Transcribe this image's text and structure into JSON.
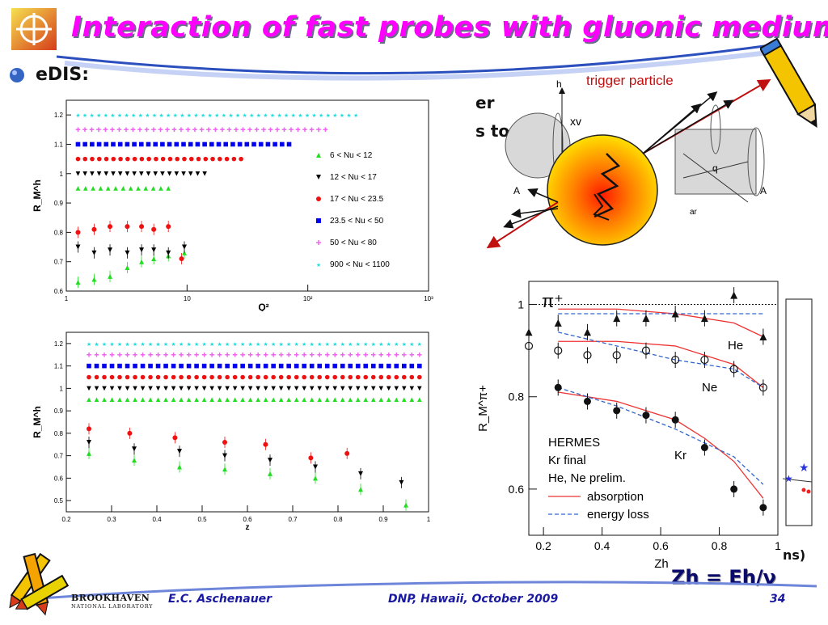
{
  "slide": {
    "title": "Interaction of fast probes with gluonic medium",
    "bullet_partial": "eDIS:",
    "partial_text_1": "er",
    "partial_text_2": "s to,",
    "right_partial": "ns)",
    "formula": "Zh = Eh/ν",
    "footer_author": "E.C. Aschenauer",
    "footer_conference": "DNP, Hawaii, October 2009",
    "footer_page": "34",
    "logo_text": "BROOKHAVEN",
    "logo_subtext": "NATIONAL LABORATORY"
  },
  "colors": {
    "title": "#ff00ff",
    "footer": "#1a1aa0",
    "series": [
      "#22dd22",
      "#000000",
      "#ee1111",
      "#0000ee",
      "#ee66ee",
      "#22dddd"
    ]
  },
  "chart_data": [
    {
      "type": "scatter",
      "xlabel": "Q²",
      "ylabel": "R_M^h",
      "xscale": "log",
      "xlim": [
        1,
        1000
      ],
      "ylim": [
        0.6,
        1.25
      ],
      "xticks": [
        "1",
        "10",
        "10²",
        "10³"
      ],
      "yticks": [
        "0.6",
        "0.7",
        "0.8",
        "0.9",
        "1",
        "1.1",
        "1.2"
      ],
      "legend": [
        "6 < Nu < 12",
        "12 < Nu < 17",
        "17 < Nu < 23.5",
        "23.5 < Nu < 50",
        "50 < Nu < 80",
        "900 < Nu < 1100"
      ],
      "legend_position": "right",
      "series": [
        {
          "name": "6 < Nu < 12",
          "marker": "triangle-up",
          "x": [
            1.25,
            1.7,
            2.3,
            3.2,
            4.2,
            5.3,
            7.0,
            9.5
          ],
          "y": [
            0.63,
            0.64,
            0.65,
            0.68,
            0.7,
            0.71,
            0.72,
            0.73
          ],
          "band": {
            "x": [
              1.25,
              7.0
            ],
            "y": 0.95
          }
        },
        {
          "name": "12 < Nu < 17",
          "marker": "triangle-down",
          "x": [
            1.25,
            1.7,
            2.3,
            3.2,
            4.2,
            5.3,
            7.0,
            9.5
          ],
          "y": [
            0.75,
            0.73,
            0.74,
            0.73,
            0.74,
            0.74,
            0.73,
            0.75
          ],
          "band": {
            "x": [
              1.25,
              14.0
            ],
            "y": 1.0
          }
        },
        {
          "name": "17 < Nu < 23.5",
          "marker": "circle",
          "x": [
            1.25,
            1.7,
            2.3,
            3.2,
            4.2,
            5.3,
            7.0,
            9.0
          ],
          "y": [
            0.8,
            0.81,
            0.82,
            0.82,
            0.82,
            0.81,
            0.82,
            0.71
          ],
          "band": {
            "x": [
              1.25,
              28.0
            ],
            "y": 1.05
          }
        },
        {
          "name": "23.5 < Nu < 50",
          "marker": "square",
          "x": [],
          "y": [],
          "band": {
            "x": [
              1.25,
              70.0
            ],
            "y": 1.1
          }
        },
        {
          "name": "50 < Nu < 80",
          "marker": "open-cross",
          "x": [],
          "y": [],
          "band": {
            "x": [
              1.25,
              140.0
            ],
            "y": 1.15
          }
        },
        {
          "name": "900 < Nu < 1100",
          "marker": "star",
          "x": [],
          "y": [],
          "band": {
            "x": [
              1.25,
              250.0
            ],
            "y": 1.2
          }
        }
      ]
    },
    {
      "type": "scatter",
      "xlabel": "z",
      "ylabel": "R_M^h",
      "xlim": [
        0.2,
        1.0
      ],
      "ylim": [
        0.45,
        1.25
      ],
      "xticks": [
        "0.2",
        "0.3",
        "0.4",
        "0.5",
        "0.6",
        "0.7",
        "0.8",
        "0.9",
        "1"
      ],
      "yticks": [
        "0.5",
        "0.6",
        "0.7",
        "0.8",
        "0.9",
        "1",
        "1.1",
        "1.2"
      ],
      "series": [
        {
          "name": "6 < Nu < 12",
          "marker": "triangle-up",
          "x": [
            0.25,
            0.35,
            0.45,
            0.55,
            0.65,
            0.75,
            0.85,
            0.95
          ],
          "y": [
            0.71,
            0.68,
            0.65,
            0.64,
            0.62,
            0.6,
            0.55,
            0.48
          ],
          "band": {
            "x": [
              0.25,
              0.98
            ],
            "y": 0.95
          }
        },
        {
          "name": "12 < Nu < 17",
          "marker": "triangle-down",
          "x": [
            0.25,
            0.35,
            0.45,
            0.55,
            0.65,
            0.75,
            0.85,
            0.94
          ],
          "y": [
            0.76,
            0.73,
            0.72,
            0.7,
            0.68,
            0.65,
            0.62,
            0.58
          ],
          "band": {
            "x": [
              0.25,
              0.98
            ],
            "y": 1.0
          }
        },
        {
          "name": "17 < Nu < 23.5",
          "marker": "circle",
          "x": [
            0.25,
            0.34,
            0.44,
            0.55,
            0.64,
            0.74,
            0.82
          ],
          "y": [
            0.82,
            0.8,
            0.78,
            0.76,
            0.75,
            0.69,
            0.71
          ],
          "band": {
            "x": [
              0.25,
              0.98
            ],
            "y": 1.05
          }
        },
        {
          "name": "23.5 < Nu < 50",
          "marker": "square",
          "x": [],
          "y": [],
          "band": {
            "x": [
              0.25,
              0.98
            ],
            "y": 1.1
          }
        },
        {
          "name": "50 < Nu < 80",
          "marker": "open-cross",
          "x": [],
          "y": [],
          "band": {
            "x": [
              0.25,
              0.98
            ],
            "y": 1.15
          }
        },
        {
          "name": "900 < Nu < 1100",
          "marker": "star",
          "x": [],
          "y": [],
          "band": {
            "x": [
              0.25,
              0.98
            ],
            "y": 1.2
          }
        }
      ]
    },
    {
      "type": "scatter",
      "annotation": "π⁺",
      "xlabel": "Zh",
      "ylabel": "R_M^π+",
      "xlim": [
        0.15,
        1.0
      ],
      "ylim": [
        0.5,
        1.05
      ],
      "xticks": [
        "0.2",
        "0.4",
        "0.6",
        "0.8",
        "1"
      ],
      "yticks": [
        "0.6",
        "0.8",
        "1"
      ],
      "text_labels": [
        "HERMES",
        "Kr final",
        "He, Ne prelim.",
        "He",
        "Ne",
        "Kr"
      ],
      "legend": [
        "absorption",
        "energy loss"
      ],
      "series": [
        {
          "name": "He",
          "marker": "triangle-up",
          "x": [
            0.15,
            0.25,
            0.35,
            0.45,
            0.55,
            0.65,
            0.75,
            0.85,
            0.95
          ],
          "y": [
            0.94,
            0.96,
            0.94,
            0.97,
            0.97,
            0.98,
            0.97,
            1.02,
            0.93
          ]
        },
        {
          "name": "Ne",
          "marker": "open-circle",
          "x": [
            0.15,
            0.25,
            0.35,
            0.45,
            0.55,
            0.65,
            0.75,
            0.85,
            0.95
          ],
          "y": [
            0.91,
            0.9,
            0.89,
            0.89,
            0.9,
            0.88,
            0.88,
            0.86,
            0.82
          ]
        },
        {
          "name": "Kr",
          "marker": "circle",
          "x": [
            0.25,
            0.35,
            0.45,
            0.55,
            0.65,
            0.75,
            0.85,
            0.95
          ],
          "y": [
            0.82,
            0.79,
            0.77,
            0.76,
            0.75,
            0.69,
            0.6,
            0.56
          ]
        }
      ],
      "curves": [
        {
          "name": "absorption",
          "style": "solid",
          "color": "#e33",
          "group": "He",
          "x": [
            0.25,
            0.45,
            0.65,
            0.75,
            0.85,
            0.95
          ],
          "y": [
            0.99,
            0.99,
            0.98,
            0.97,
            0.96,
            0.93
          ]
        },
        {
          "name": "energy loss",
          "style": "dashed",
          "color": "#3366cc",
          "group": "He",
          "x": [
            0.25,
            0.45,
            0.65,
            0.85,
            0.95
          ],
          "y": [
            0.98,
            0.98,
            0.98,
            0.98,
            0.98
          ]
        },
        {
          "name": "absorption",
          "style": "solid",
          "color": "#e33",
          "group": "Ne",
          "x": [
            0.25,
            0.45,
            0.65,
            0.75,
            0.85,
            0.95
          ],
          "y": [
            0.92,
            0.92,
            0.91,
            0.89,
            0.87,
            0.82
          ]
        },
        {
          "name": "energy loss",
          "style": "dashed",
          "color": "#3366cc",
          "group": "Ne",
          "x": [
            0.25,
            0.45,
            0.65,
            0.85,
            0.95
          ],
          "y": [
            0.94,
            0.91,
            0.88,
            0.86,
            0.82
          ]
        },
        {
          "name": "absorption",
          "style": "solid",
          "color": "#e33",
          "group": "Kr",
          "x": [
            0.25,
            0.45,
            0.55,
            0.65,
            0.75,
            0.85,
            0.95
          ],
          "y": [
            0.81,
            0.79,
            0.77,
            0.75,
            0.71,
            0.66,
            0.58
          ]
        },
        {
          "name": "energy loss",
          "style": "dashed",
          "color": "#3366cc",
          "group": "Kr",
          "x": [
            0.25,
            0.45,
            0.65,
            0.85,
            0.95
          ],
          "y": [
            0.82,
            0.78,
            0.73,
            0.67,
            0.61
          ]
        }
      ]
    }
  ],
  "diagram": {
    "label_trigger": "trigger particle",
    "labels": [
      "h",
      "q",
      "A",
      "A",
      "xv",
      "ar"
    ]
  }
}
